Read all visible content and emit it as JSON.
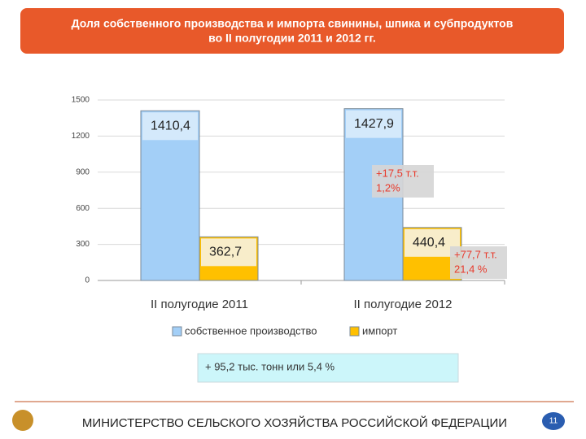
{
  "header": {
    "title_lines": [
      "Доля собственного производства и импорта свинины, шпика и субпродуктов",
      "во II полугодии 2011 и 2012 гг."
    ]
  },
  "chart_data": {
    "type": "bar",
    "categories": [
      "II полугодие 2011",
      "II полугодие 2012"
    ],
    "series": [
      {
        "name": "собственное производство",
        "color": "#a3cff7",
        "values": [
          1410.4,
          1427.9
        ],
        "value_labels": [
          "1410,4",
          "1427,9"
        ]
      },
      {
        "name": "импорт",
        "color": "#ffc000",
        "values": [
          362.7,
          440.4
        ],
        "value_labels": [
          "362,7",
          "440,4"
        ]
      }
    ],
    "ylim": [
      0,
      1500
    ],
    "yticks": [
      0,
      300,
      600,
      900,
      1200,
      1500
    ],
    "grid": true,
    "legend": "bottom",
    "annotations": [
      {
        "lines": [
          "+17,5 т.т.",
          "1,2%"
        ]
      },
      {
        "lines": [
          "+77,7 т.т.",
          "21,4 %"
        ]
      }
    ]
  },
  "summary": "+ 95,2 тыс. тонн или 5,4 %",
  "footer": {
    "text": "МИНИСТЕРСТВО СЕЛЬСКОГО ХОЗЯЙСТВА РОССИЙСКОЙ ФЕДЕРАЦИИ",
    "page": "11"
  }
}
